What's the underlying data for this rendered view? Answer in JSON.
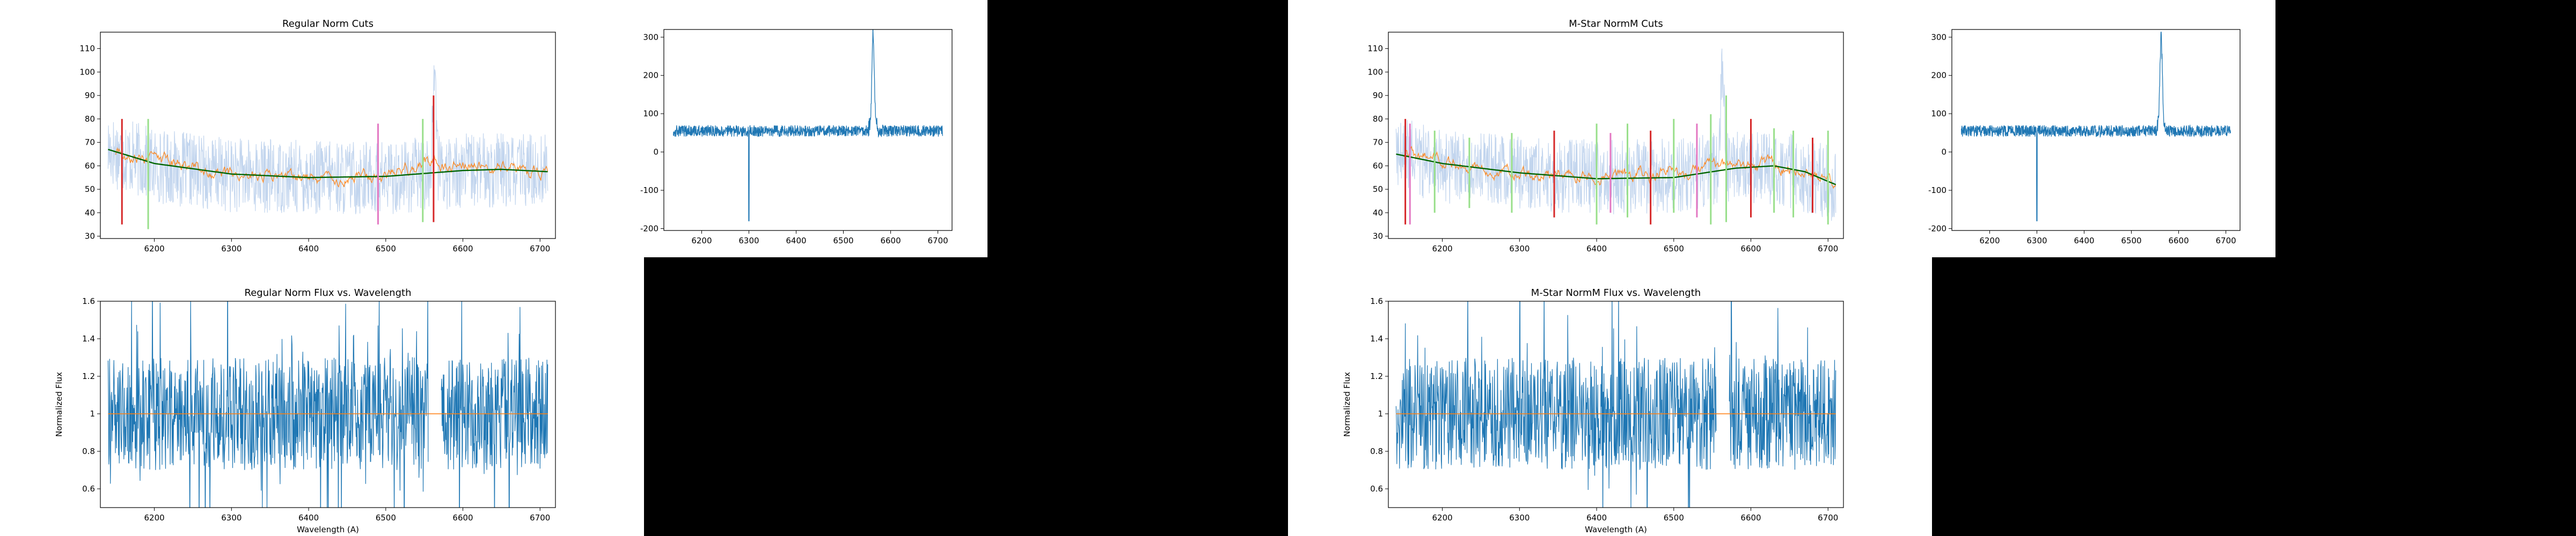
{
  "figure": {
    "background": "#ffffff",
    "blank_color": "#000000"
  },
  "colors": {
    "blue": "#1f77b4",
    "light_blue": "#aec7e8",
    "orange": "#ff7f0e",
    "green": "#2ca02c",
    "dark_green": "#006400",
    "red": "#d62728",
    "pink": "#e377c2",
    "light_green": "#98df8a"
  },
  "chart_data": [
    {
      "id": "regular-cuts",
      "type": "line",
      "title": "Regular Norm Cuts",
      "xlabel": "",
      "ylabel": "",
      "xlim": [
        6130,
        6720
      ],
      "ylim": [
        29,
        117
      ],
      "xticks": [
        6200,
        6300,
        6400,
        6500,
        6600,
        6700
      ],
      "yticks": [
        30,
        40,
        50,
        60,
        70,
        80,
        90,
        100,
        110
      ],
      "series": [
        {
          "style": "raw-noisy",
          "color": "light_blue",
          "x_range": [
            6140,
            6710
          ],
          "base_curve": [
            [
              6140,
              67
            ],
            [
              6200,
              60
            ],
            [
              6300,
              56
            ],
            [
              6400,
              55
            ],
            [
              6500,
              55
            ],
            [
              6600,
              58
            ],
            [
              6710,
              58
            ]
          ],
          "noise": 16,
          "emission_peak": {
            "x": 6563,
            "peak": 118
          }
        },
        {
          "style": "smoothed",
          "color": "orange",
          "x_range": [
            6150,
            6710
          ],
          "base_curve": [
            [
              6150,
              66
            ],
            [
              6200,
              63
            ],
            [
              6300,
              56
            ],
            [
              6400,
              55
            ],
            [
              6500,
              56
            ],
            [
              6560,
              62
            ],
            [
              6600,
              60
            ],
            [
              6710,
              57
            ]
          ],
          "noise": 3
        },
        {
          "style": "fit",
          "color": "dark_green",
          "points": [
            [
              6140,
              67
            ],
            [
              6200,
              61
            ],
            [
              6300,
              56.5
            ],
            [
              6400,
              55
            ],
            [
              6500,
              55.5
            ],
            [
              6600,
              58
            ],
            [
              6650,
              58.5
            ],
            [
              6710,
              57.5
            ]
          ]
        }
      ],
      "cut_lines": [
        {
          "x": 6158,
          "y0": 35,
          "y1": 80,
          "color": "red"
        },
        {
          "x": 6192,
          "y0": 33,
          "y1": 80,
          "color": "light_green"
        },
        {
          "x": 6490,
          "y0": 35,
          "y1": 78,
          "color": "pink"
        },
        {
          "x": 6548,
          "y0": 36,
          "y1": 80,
          "color": "light_green"
        },
        {
          "x": 6562,
          "y0": 36,
          "y1": 90,
          "color": "red"
        }
      ]
    },
    {
      "id": "regular-raw",
      "type": "line",
      "title": "",
      "xlabel": "",
      "ylabel": "",
      "xlim": [
        6120,
        6730
      ],
      "ylim": [
        -205,
        320
      ],
      "xticks": [
        6200,
        6300,
        6400,
        6500,
        6600,
        6700
      ],
      "yticks": [
        -200,
        -100,
        0,
        100,
        200,
        300
      ],
      "series": [
        {
          "style": "spectrum",
          "color": "blue",
          "x_range": [
            6140,
            6710
          ],
          "baseline": 55,
          "noise": 15,
          "emission_peak": {
            "x": 6563,
            "peak": 295
          },
          "absorption": {
            "x": 6300,
            "min": -180
          }
        }
      ]
    },
    {
      "id": "regular-norm",
      "type": "line",
      "title": "Regular Norm Flux vs. Wavelength",
      "xlabel": "Wavelength (A)",
      "ylabel": "Normalized Flux",
      "xlim": [
        6130,
        6720
      ],
      "ylim": [
        0.5,
        1.6
      ],
      "xticks": [
        6200,
        6300,
        6400,
        6500,
        6600,
        6700
      ],
      "yticks": [
        0.6,
        0.8,
        1.0,
        1.2,
        1.4,
        1.6
      ],
      "gap": [
        6555,
        6572
      ],
      "series": [
        {
          "style": "normalized",
          "color": "blue",
          "x_range": [
            6140,
            6710
          ],
          "baseline": 1.0,
          "noise": 0.3
        },
        {
          "style": "unity",
          "color": "orange",
          "value": 1.0
        }
      ]
    },
    {
      "id": "mstar-cuts",
      "type": "line",
      "title": "M-Star NormM Cuts",
      "xlabel": "",
      "ylabel": "",
      "xlim": [
        6130,
        6720
      ],
      "ylim": [
        29,
        117
      ],
      "xticks": [
        6200,
        6300,
        6400,
        6500,
        6600,
        6700
      ],
      "yticks": [
        30,
        40,
        50,
        60,
        70,
        80,
        90,
        100,
        110
      ],
      "series": [
        {
          "style": "raw-noisy",
          "color": "light_blue",
          "x_range": [
            6140,
            6710
          ],
          "base_curve": [
            [
              6140,
              65
            ],
            [
              6200,
              60
            ],
            [
              6300,
              57
            ],
            [
              6400,
              55
            ],
            [
              6500,
              56
            ],
            [
              6600,
              60
            ],
            [
              6650,
              58
            ],
            [
              6710,
              52
            ]
          ],
          "noise": 16,
          "emission_peak": {
            "x": 6563,
            "peak": 118
          }
        },
        {
          "style": "smoothed",
          "color": "orange",
          "x_range": [
            6150,
            6710
          ],
          "base_curve": [
            [
              6150,
              64
            ],
            [
              6200,
              62
            ],
            [
              6300,
              57
            ],
            [
              6400,
              55
            ],
            [
              6500,
              57
            ],
            [
              6600,
              61
            ],
            [
              6650,
              59
            ],
            [
              6710,
              52
            ]
          ],
          "noise": 3
        },
        {
          "style": "fit",
          "color": "dark_green",
          "points": [
            [
              6140,
              65
            ],
            [
              6200,
              61
            ],
            [
              6300,
              57
            ],
            [
              6400,
              54.5
            ],
            [
              6500,
              55
            ],
            [
              6580,
              59
            ],
            [
              6630,
              60
            ],
            [
              6670,
              57.5
            ],
            [
              6710,
              52
            ]
          ]
        }
      ],
      "cut_lines": [
        {
          "x": 6152,
          "y0": 35,
          "y1": 80,
          "color": "red"
        },
        {
          "x": 6158,
          "y0": 35,
          "y1": 78,
          "color": "pink"
        },
        {
          "x": 6190,
          "y0": 40,
          "y1": 75,
          "color": "light_green"
        },
        {
          "x": 6235,
          "y0": 42,
          "y1": 72,
          "color": "light_green"
        },
        {
          "x": 6290,
          "y0": 40,
          "y1": 74,
          "color": "light_green"
        },
        {
          "x": 6345,
          "y0": 38,
          "y1": 75,
          "color": "red"
        },
        {
          "x": 6400,
          "y0": 35,
          "y1": 78,
          "color": "light_green"
        },
        {
          "x": 6418,
          "y0": 40,
          "y1": 74,
          "color": "pink"
        },
        {
          "x": 6440,
          "y0": 38,
          "y1": 78,
          "color": "light_green"
        },
        {
          "x": 6470,
          "y0": 35,
          "y1": 75,
          "color": "red"
        },
        {
          "x": 6500,
          "y0": 40,
          "y1": 80,
          "color": "light_green"
        },
        {
          "x": 6530,
          "y0": 38,
          "y1": 78,
          "color": "pink"
        },
        {
          "x": 6548,
          "y0": 35,
          "y1": 82,
          "color": "light_green"
        },
        {
          "x": 6568,
          "y0": 36,
          "y1": 90,
          "color": "light_green"
        },
        {
          "x": 6600,
          "y0": 38,
          "y1": 80,
          "color": "red"
        },
        {
          "x": 6630,
          "y0": 40,
          "y1": 76,
          "color": "light_green"
        },
        {
          "x": 6655,
          "y0": 38,
          "y1": 75,
          "color": "light_green"
        },
        {
          "x": 6680,
          "y0": 40,
          "y1": 72,
          "color": "red"
        },
        {
          "x": 6700,
          "y0": 35,
          "y1": 75,
          "color": "light_green"
        }
      ]
    },
    {
      "id": "mstar-raw",
      "type": "line",
      "title": "",
      "xlabel": "",
      "ylabel": "",
      "xlim": [
        6120,
        6730
      ],
      "ylim": [
        -205,
        320
      ],
      "xticks": [
        6200,
        6300,
        6400,
        6500,
        6600,
        6700
      ],
      "yticks": [
        -200,
        -100,
        0,
        100,
        200,
        300
      ],
      "series": [
        {
          "style": "spectrum",
          "color": "blue",
          "x_range": [
            6140,
            6710
          ],
          "baseline": 55,
          "noise": 15,
          "emission_peak": {
            "x": 6563,
            "peak": 295
          },
          "absorption": {
            "x": 6300,
            "min": -180
          }
        }
      ]
    },
    {
      "id": "mstar-norm",
      "type": "line",
      "title": "M-Star NormM Flux vs. Wavelength",
      "xlabel": "Wavelength (A)",
      "ylabel": "Normalized Flux",
      "xlim": [
        6130,
        6720
      ],
      "ylim": [
        0.5,
        1.6
      ],
      "xticks": [
        6200,
        6300,
        6400,
        6500,
        6600,
        6700
      ],
      "yticks": [
        0.6,
        0.8,
        1.0,
        1.2,
        1.4,
        1.6
      ],
      "gap": [
        6555,
        6572
      ],
      "series": [
        {
          "style": "normalized",
          "color": "blue",
          "x_range": [
            6140,
            6710
          ],
          "baseline": 1.0,
          "noise": 0.3
        },
        {
          "style": "unity",
          "color": "orange",
          "value": 1.0
        }
      ]
    }
  ]
}
